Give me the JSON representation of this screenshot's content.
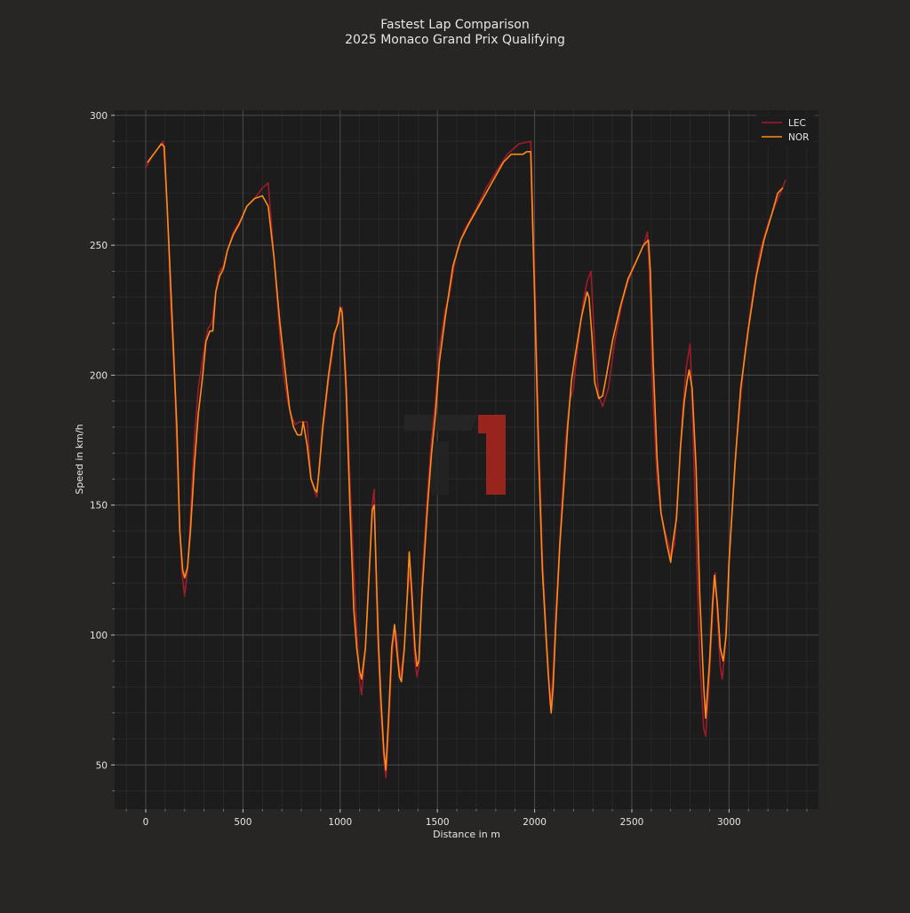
{
  "chart_data": {
    "type": "line",
    "title": "Fastest Lap Comparison",
    "subtitle": "2025 Monaco Grand Prix Qualifying",
    "xlabel": "Distance in m",
    "ylabel": "Speed in km/h",
    "xlim": [
      -160,
      3460
    ],
    "ylim": [
      33,
      302
    ],
    "xticks": [
      0,
      500,
      1000,
      1500,
      2000,
      2500,
      3000
    ],
    "yticks": [
      50,
      100,
      150,
      200,
      250,
      300
    ],
    "grid": true,
    "legend_position": "top-right",
    "series": [
      {
        "name": "LEC",
        "color": "#9e1b2a",
        "points": [
          [
            0,
            280
          ],
          [
            40,
            285
          ],
          [
            90,
            290
          ],
          [
            110,
            265
          ],
          [
            130,
            225
          ],
          [
            150,
            195
          ],
          [
            170,
            150
          ],
          [
            185,
            125
          ],
          [
            195,
            118
          ],
          [
            200,
            115
          ],
          [
            215,
            125
          ],
          [
            230,
            145
          ],
          [
            250,
            175
          ],
          [
            270,
            195
          ],
          [
            300,
            210
          ],
          [
            320,
            218
          ],
          [
            340,
            220
          ],
          [
            360,
            232
          ],
          [
            380,
            240
          ],
          [
            400,
            242
          ],
          [
            420,
            248
          ],
          [
            450,
            255
          ],
          [
            490,
            260
          ],
          [
            520,
            265
          ],
          [
            560,
            268
          ],
          [
            600,
            272
          ],
          [
            630,
            274
          ],
          [
            660,
            245
          ],
          [
            690,
            215
          ],
          [
            710,
            200
          ],
          [
            730,
            190
          ],
          [
            750,
            184
          ],
          [
            770,
            181
          ],
          [
            790,
            182
          ],
          [
            830,
            182
          ],
          [
            850,
            160
          ],
          [
            870,
            155
          ],
          [
            880,
            153
          ],
          [
            890,
            163
          ],
          [
            910,
            178
          ],
          [
            940,
            198
          ],
          [
            970,
            214
          ],
          [
            990,
            222
          ],
          [
            1000,
            226
          ],
          [
            1010,
            226
          ],
          [
            1030,
            200
          ],
          [
            1050,
            160
          ],
          [
            1070,
            125
          ],
          [
            1090,
            95
          ],
          [
            1100,
            82
          ],
          [
            1110,
            77
          ],
          [
            1130,
            95
          ],
          [
            1150,
            125
          ],
          [
            1165,
            150
          ],
          [
            1175,
            156
          ],
          [
            1185,
            120
          ],
          [
            1195,
            95
          ],
          [
            1210,
            70
          ],
          [
            1225,
            52
          ],
          [
            1235,
            45
          ],
          [
            1250,
            65
          ],
          [
            1265,
            90
          ],
          [
            1280,
            103
          ],
          [
            1290,
            100
          ],
          [
            1300,
            90
          ],
          [
            1310,
            84
          ],
          [
            1330,
            95
          ],
          [
            1345,
            115
          ],
          [
            1360,
            125
          ],
          [
            1370,
            110
          ],
          [
            1385,
            90
          ],
          [
            1395,
            84
          ],
          [
            1405,
            88
          ],
          [
            1420,
            120
          ],
          [
            1450,
            155
          ],
          [
            1470,
            175
          ],
          [
            1490,
            190
          ],
          [
            1510,
            210
          ],
          [
            1540,
            225
          ],
          [
            1560,
            230
          ],
          [
            1600,
            248
          ],
          [
            1640,
            256
          ],
          [
            1700,
            264
          ],
          [
            1750,
            272
          ],
          [
            1800,
            278
          ],
          [
            1860,
            285
          ],
          [
            1920,
            289
          ],
          [
            1980,
            290
          ],
          [
            2000,
            240
          ],
          [
            2020,
            180
          ],
          [
            2040,
            130
          ],
          [
            2060,
            100
          ],
          [
            2070,
            88
          ],
          [
            2080,
            73
          ],
          [
            2095,
            85
          ],
          [
            2110,
            110
          ],
          [
            2140,
            150
          ],
          [
            2160,
            175
          ],
          [
            2180,
            190
          ],
          [
            2200,
            195
          ],
          [
            2220,
            210
          ],
          [
            2250,
            228
          ],
          [
            2270,
            236
          ],
          [
            2290,
            240
          ],
          [
            2310,
            210
          ],
          [
            2330,
            192
          ],
          [
            2350,
            188
          ],
          [
            2380,
            195
          ],
          [
            2410,
            212
          ],
          [
            2450,
            228
          ],
          [
            2480,
            236
          ],
          [
            2530,
            245
          ],
          [
            2560,
            250
          ],
          [
            2580,
            255
          ],
          [
            2590,
            240
          ],
          [
            2610,
            190
          ],
          [
            2630,
            160
          ],
          [
            2650,
            147
          ],
          [
            2670,
            140
          ],
          [
            2690,
            135
          ],
          [
            2700,
            130
          ],
          [
            2720,
            135
          ],
          [
            2740,
            160
          ],
          [
            2760,
            185
          ],
          [
            2780,
            203
          ],
          [
            2800,
            212
          ],
          [
            2810,
            190
          ],
          [
            2830,
            140
          ],
          [
            2850,
            90
          ],
          [
            2870,
            64
          ],
          [
            2880,
            61
          ],
          [
            2900,
            85
          ],
          [
            2920,
            115
          ],
          [
            2930,
            124
          ],
          [
            2940,
            108
          ],
          [
            2955,
            88
          ],
          [
            2965,
            83
          ],
          [
            2980,
            95
          ],
          [
            3000,
            130
          ],
          [
            3040,
            175
          ],
          [
            3080,
            208
          ],
          [
            3120,
            230
          ],
          [
            3160,
            248
          ],
          [
            3200,
            258
          ],
          [
            3240,
            266
          ],
          [
            3270,
            271
          ],
          [
            3290,
            275
          ]
        ]
      },
      {
        "name": "NOR",
        "color": "#ff8c1a",
        "points": [
          [
            10,
            282
          ],
          [
            40,
            285
          ],
          [
            80,
            289
          ],
          [
            95,
            288
          ],
          [
            110,
            265
          ],
          [
            125,
            240
          ],
          [
            140,
            215
          ],
          [
            160,
            180
          ],
          [
            175,
            140
          ],
          [
            190,
            125
          ],
          [
            200,
            122
          ],
          [
            215,
            126
          ],
          [
            230,
            140
          ],
          [
            250,
            165
          ],
          [
            270,
            185
          ],
          [
            290,
            198
          ],
          [
            310,
            213
          ],
          [
            330,
            217
          ],
          [
            345,
            217
          ],
          [
            360,
            232
          ],
          [
            380,
            238
          ],
          [
            400,
            241
          ],
          [
            420,
            248
          ],
          [
            450,
            254
          ],
          [
            480,
            258
          ],
          [
            520,
            265
          ],
          [
            560,
            268
          ],
          [
            600,
            269
          ],
          [
            630,
            265
          ],
          [
            660,
            245
          ],
          [
            690,
            220
          ],
          [
            720,
            200
          ],
          [
            740,
            187
          ],
          [
            760,
            180
          ],
          [
            780,
            177
          ],
          [
            800,
            177
          ],
          [
            810,
            182
          ],
          [
            830,
            173
          ],
          [
            850,
            160
          ],
          [
            870,
            156
          ],
          [
            880,
            155
          ],
          [
            890,
            162
          ],
          [
            910,
            180
          ],
          [
            940,
            200
          ],
          [
            970,
            216
          ],
          [
            990,
            220
          ],
          [
            1000,
            226
          ],
          [
            1010,
            224
          ],
          [
            1030,
            195
          ],
          [
            1050,
            150
          ],
          [
            1070,
            110
          ],
          [
            1085,
            95
          ],
          [
            1100,
            86
          ],
          [
            1110,
            83
          ],
          [
            1130,
            95
          ],
          [
            1150,
            125
          ],
          [
            1165,
            148
          ],
          [
            1175,
            150
          ],
          [
            1185,
            125
          ],
          [
            1195,
            100
          ],
          [
            1210,
            75
          ],
          [
            1225,
            55
          ],
          [
            1235,
            48
          ],
          [
            1250,
            70
          ],
          [
            1265,
            95
          ],
          [
            1280,
            104
          ],
          [
            1290,
            95
          ],
          [
            1305,
            84
          ],
          [
            1315,
            82
          ],
          [
            1330,
            95
          ],
          [
            1345,
            115
          ],
          [
            1355,
            132
          ],
          [
            1370,
            115
          ],
          [
            1385,
            95
          ],
          [
            1395,
            88
          ],
          [
            1405,
            90
          ],
          [
            1420,
            115
          ],
          [
            1450,
            150
          ],
          [
            1470,
            170
          ],
          [
            1490,
            185
          ],
          [
            1510,
            205
          ],
          [
            1540,
            222
          ],
          [
            1560,
            232
          ],
          [
            1580,
            242
          ],
          [
            1620,
            252
          ],
          [
            1660,
            258
          ],
          [
            1720,
            266
          ],
          [
            1780,
            274
          ],
          [
            1840,
            282
          ],
          [
            1880,
            285
          ],
          [
            1940,
            285
          ],
          [
            1960,
            286
          ],
          [
            1980,
            286
          ],
          [
            2000,
            230
          ],
          [
            2020,
            170
          ],
          [
            2040,
            125
          ],
          [
            2060,
            98
          ],
          [
            2070,
            85
          ],
          [
            2085,
            70
          ],
          [
            2095,
            80
          ],
          [
            2110,
            105
          ],
          [
            2130,
            135
          ],
          [
            2150,
            157
          ],
          [
            2170,
            180
          ],
          [
            2190,
            198
          ],
          [
            2210,
            208
          ],
          [
            2240,
            222
          ],
          [
            2270,
            232
          ],
          [
            2280,
            230
          ],
          [
            2295,
            215
          ],
          [
            2310,
            197
          ],
          [
            2330,
            191
          ],
          [
            2350,
            192
          ],
          [
            2370,
            200
          ],
          [
            2400,
            213
          ],
          [
            2440,
            226
          ],
          [
            2480,
            237
          ],
          [
            2530,
            245
          ],
          [
            2560,
            250
          ],
          [
            2585,
            252
          ],
          [
            2595,
            240
          ],
          [
            2610,
            205
          ],
          [
            2630,
            168
          ],
          [
            2650,
            147
          ],
          [
            2680,
            135
          ],
          [
            2700,
            128
          ],
          [
            2710,
            135
          ],
          [
            2730,
            145
          ],
          [
            2750,
            172
          ],
          [
            2770,
            190
          ],
          [
            2785,
            198
          ],
          [
            2795,
            202
          ],
          [
            2810,
            195
          ],
          [
            2830,
            165
          ],
          [
            2850,
            115
          ],
          [
            2870,
            80
          ],
          [
            2880,
            68
          ],
          [
            2900,
            90
          ],
          [
            2915,
            112
          ],
          [
            2925,
            123
          ],
          [
            2940,
            112
          ],
          [
            2955,
            95
          ],
          [
            2970,
            90
          ],
          [
            2985,
            100
          ],
          [
            3000,
            128
          ],
          [
            3030,
            165
          ],
          [
            3060,
            195
          ],
          [
            3100,
            218
          ],
          [
            3140,
            238
          ],
          [
            3180,
            252
          ],
          [
            3220,
            262
          ],
          [
            3250,
            270
          ],
          [
            3275,
            272
          ]
        ]
      }
    ]
  }
}
